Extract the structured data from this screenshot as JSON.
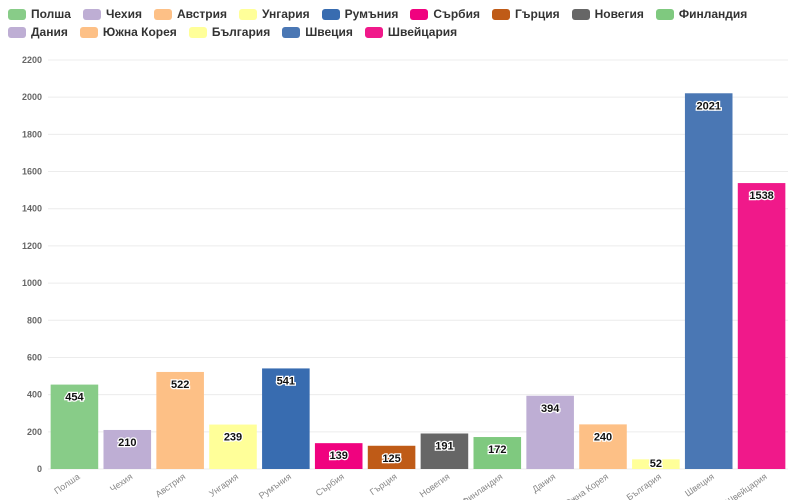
{
  "chart_data": {
    "type": "bar",
    "title": "",
    "xlabel": "",
    "ylabel": "",
    "ylim": [
      0,
      2200
    ],
    "yticks": [
      0,
      200,
      400,
      600,
      800,
      1000,
      1200,
      1400,
      1600,
      1800,
      2000,
      2200
    ],
    "grid": true,
    "legend_position": "top",
    "categories": [
      "Полша",
      "Чехия",
      "Австрия",
      "Унгария",
      "Румъния",
      "Сърбия",
      "Гърция",
      "Новегия",
      "Финландия",
      "Дания",
      "Южна Корея",
      "България",
      "Швеция",
      "Швейцария"
    ],
    "values": [
      454,
      210,
      522,
      239,
      541,
      139,
      125,
      191,
      172,
      394,
      240,
      52,
      2021,
      1538
    ],
    "colors": [
      "#88cc88",
      "#beaed4",
      "#fdc086",
      "#ffff99",
      "#386cb0",
      "#f0027f",
      "#bf5b17",
      "#666666",
      "#7fc97f",
      "#beaed4",
      "#fdc086",
      "#ffff99",
      "#4a77b4",
      "#f0198a"
    ]
  }
}
